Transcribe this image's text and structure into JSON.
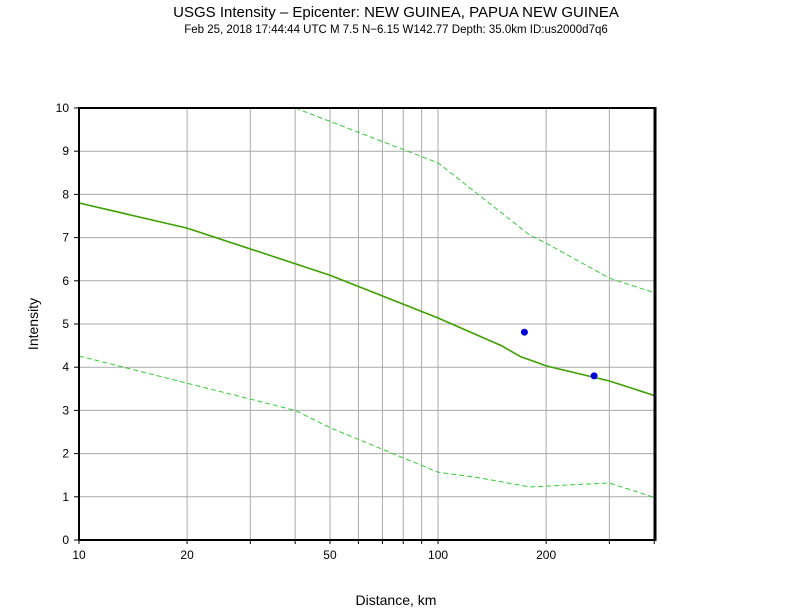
{
  "chart_data": {
    "type": "line",
    "title": "USGS Intensity –  Epicenter: NEW GUINEA, PAPUA NEW GUINEA",
    "subtitle": "Feb 25, 2018 17:44:44 UTC   M 7.5   N−6.15 W142.77   Depth: 35.0km   ID:us2000d7q6",
    "xlabel": "Distance, km",
    "ylabel": "Intensity",
    "xscale": "log",
    "xlim": [
      10,
      402
    ],
    "ylim": [
      0,
      10
    ],
    "grid": true,
    "xticks": [
      10,
      20,
      50,
      100,
      200
    ],
    "xtick_labels": [
      "10",
      "20",
      "50",
      "100",
      "200"
    ],
    "yticks": [
      0,
      1,
      2,
      3,
      4,
      5,
      6,
      7,
      8,
      9,
      10
    ],
    "ytick_labels": [
      "0",
      "1",
      "2",
      "3",
      "4",
      "5",
      "6",
      "7",
      "8",
      "9",
      "10"
    ],
    "series": [
      {
        "style": "solid",
        "color": "#3f9f00",
        "x": [
          10,
          20,
          50,
          100,
          150,
          170,
          190,
          200,
          300,
          402
        ],
        "y": [
          7.8,
          7.22,
          6.13,
          5.14,
          4.5,
          4.24,
          4.1,
          4.03,
          3.68,
          3.34
        ]
      },
      {
        "style": "dashed",
        "color": "#33cc33",
        "x": [
          40,
          100,
          180,
          200,
          300,
          402
        ],
        "y": [
          10,
          8.73,
          7.06,
          6.87,
          6.06,
          5.72
        ]
      },
      {
        "style": "dashed",
        "color": "#33cc33",
        "x": [
          10,
          20,
          40,
          50,
          100,
          130,
          180,
          300,
          402
        ],
        "y": [
          4.26,
          3.63,
          3.0,
          2.6,
          1.57,
          1.44,
          1.23,
          1.32,
          0.98
        ]
      },
      {
        "style": "points",
        "color": "#0000dd",
        "x": [
          174,
          272
        ],
        "y": [
          4.81,
          3.8
        ]
      }
    ]
  }
}
